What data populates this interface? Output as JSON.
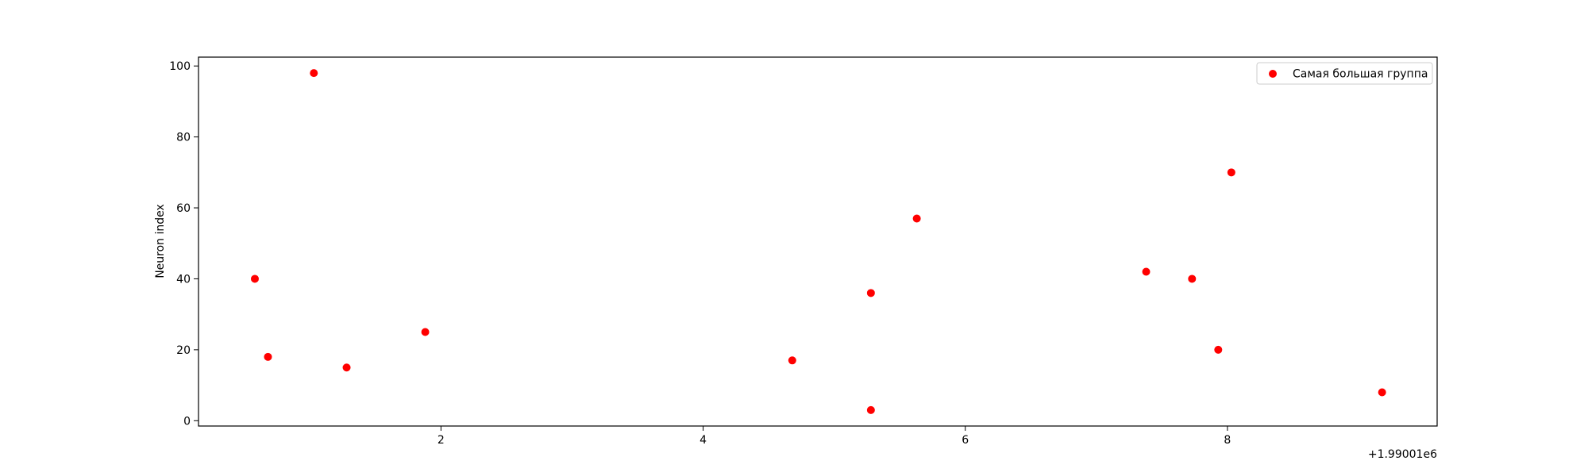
{
  "chart_data": {
    "type": "scatter",
    "title": "",
    "xlabel": "",
    "ylabel": "Neuron index",
    "x_offset_label": "+1.99001e6",
    "xlim": [
      0.15,
      9.6
    ],
    "ylim": [
      -1.5,
      102.5
    ],
    "xticks": [
      2,
      4,
      6,
      8
    ],
    "xtick_labels": [
      "2",
      "4",
      "6",
      "8"
    ],
    "yticks": [
      0,
      20,
      40,
      60,
      80,
      100
    ],
    "ytick_labels": [
      "0",
      "20",
      "40",
      "60",
      "80",
      "100"
    ],
    "grid": false,
    "legend_position": "top-right",
    "series": [
      {
        "name": "Самая большая группа",
        "color": "#ff0000",
        "marker": "circle",
        "points": [
          {
            "x": 0.58,
            "y": 40
          },
          {
            "x": 0.68,
            "y": 18
          },
          {
            "x": 1.03,
            "y": 98
          },
          {
            "x": 1.28,
            "y": 15
          },
          {
            "x": 1.88,
            "y": 25
          },
          {
            "x": 4.68,
            "y": 17
          },
          {
            "x": 5.28,
            "y": 36
          },
          {
            "x": 5.28,
            "y": 3
          },
          {
            "x": 5.63,
            "y": 57
          },
          {
            "x": 7.38,
            "y": 42
          },
          {
            "x": 7.73,
            "y": 40
          },
          {
            "x": 7.93,
            "y": 20
          },
          {
            "x": 8.03,
            "y": 70
          },
          {
            "x": 9.18,
            "y": 8
          }
        ]
      }
    ]
  }
}
